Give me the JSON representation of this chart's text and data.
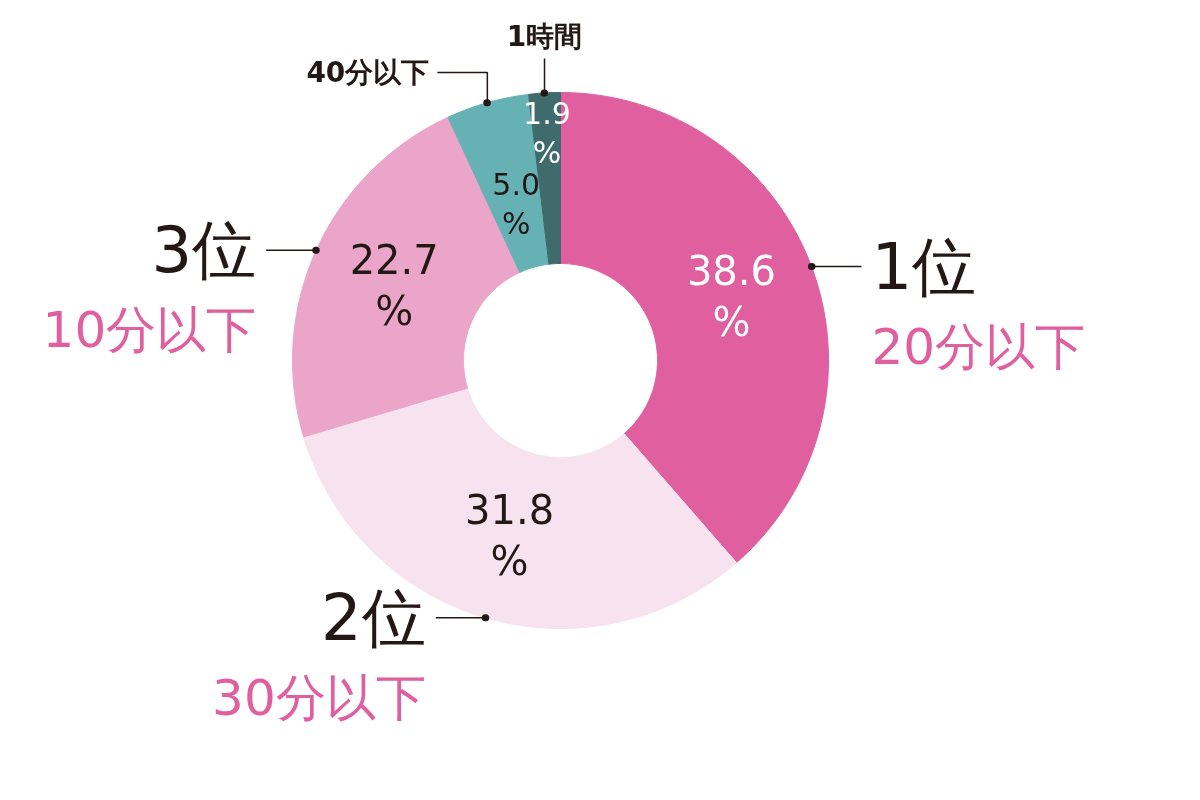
{
  "chart_data": {
    "type": "donut",
    "categories": [
      "20分以下",
      "30分以下",
      "10分以下",
      "40分以下",
      "1時間"
    ],
    "values": [
      38.6,
      31.8,
      22.7,
      5.0,
      1.9
    ],
    "colors": [
      "#e0609f",
      "#f7e3ef",
      "#eba5c9",
      "#66b1b4",
      "#3f6b6d"
    ],
    "value_labels": [
      "38.6\n%",
      "31.8\n%",
      "22.7\n%",
      "5.0\n%",
      "1.9\n%"
    ],
    "annotations": [
      {
        "text": "1位",
        "x": "20分以下"
      },
      {
        "text": "2位",
        "x": "30分以下"
      },
      {
        "text": "3位",
        "x": "10分以下"
      }
    ]
  }
}
